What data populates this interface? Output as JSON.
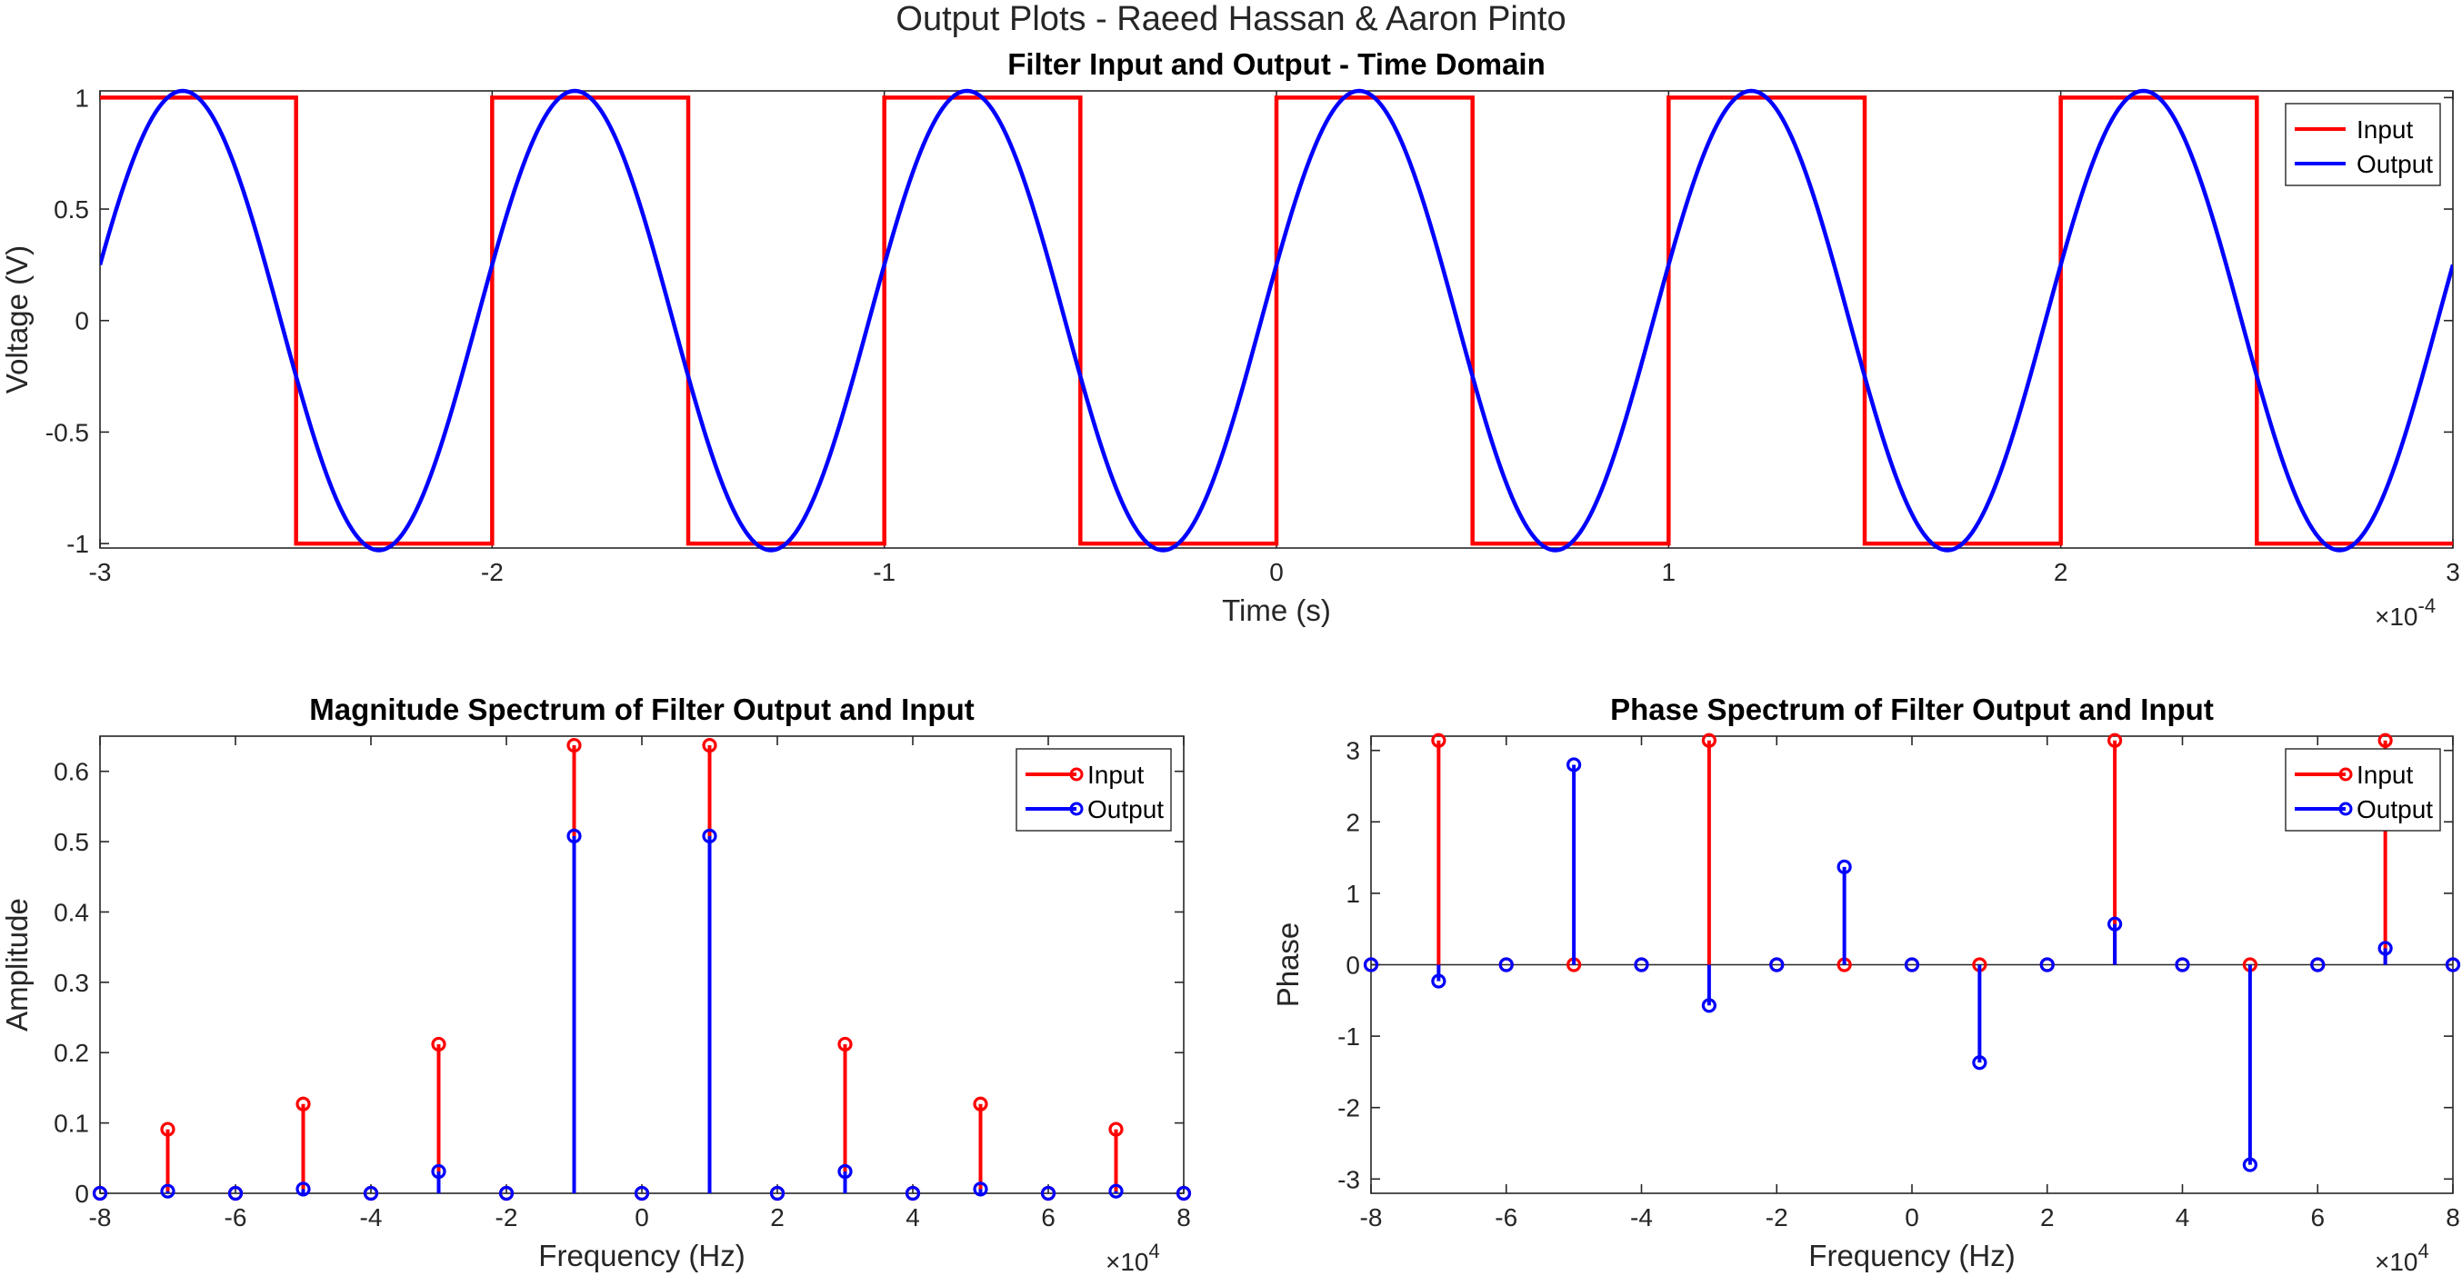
{
  "figure_title": "Output Plots - Raeed Hassan & Aaron Pinto",
  "colors": {
    "input": "#ff0000",
    "output": "#0000ff",
    "axis": "#262626"
  },
  "chart_data": [
    {
      "type": "line",
      "title": "Filter Input and Output - Time Domain",
      "xlabel": "Time (s)",
      "ylabel": "Voltage (V)",
      "xlim": [
        -3,
        3
      ],
      "ylim": [
        -1.02,
        1.03
      ],
      "x_exponent": "-4",
      "xticks": [
        -3,
        -2,
        -1,
        0,
        1,
        2,
        3
      ],
      "yticks": [
        -1,
        -0.5,
        0,
        0.5,
        1
      ],
      "legend": {
        "position": "top-right",
        "entries": [
          "Input",
          "Output"
        ]
      },
      "series": [
        {
          "name": "Input",
          "kind": "square",
          "description_values": {
            "period_x1e-4": 1,
            "high": 1,
            "low": -1,
            "high_intervals": [
              [
                -3,
                -2.5
              ],
              [
                -2,
                -1.5
              ],
              [
                -1,
                -0.5
              ],
              [
                0,
                0.5
              ],
              [
                1,
                1.5
              ],
              [
                2,
                2.5
              ]
            ],
            "low_intervals": [
              [
                -2.5,
                -2
              ],
              [
                -1.5,
                -1
              ],
              [
                -0.5,
                0
              ],
              [
                0.5,
                1
              ],
              [
                1.5,
                2
              ],
              [
                2.5,
                3
              ]
            ]
          }
        },
        {
          "name": "Output",
          "kind": "smooth",
          "x": [
            -3,
            -2.75,
            -2.5,
            -2.25,
            -2,
            -1.75,
            -1.5,
            -1.25,
            -1,
            -0.75,
            -0.5,
            -0.25,
            0,
            0.25,
            0.5,
            0.75,
            1,
            1.25,
            1.5,
            1.75,
            2,
            2.25,
            2.5,
            2.75,
            3
          ],
          "y": [
            0.25,
            1.03,
            -0.25,
            -1.03,
            0.25,
            1.03,
            -0.25,
            -1.03,
            0.25,
            1.03,
            -0.25,
            -1.03,
            0.25,
            1.03,
            -0.25,
            -1.03,
            0.25,
            1.03,
            -0.25,
            -1.03,
            0.25,
            1.03,
            -0.25,
            -1.03,
            0.25
          ]
        }
      ]
    },
    {
      "type": "stem",
      "title": "Magnitude Spectrum of Filter Output and Input",
      "xlabel": "Frequency (Hz)",
      "ylabel": "Amplitude",
      "xlim": [
        -8,
        8
      ],
      "ylim": [
        0,
        0.65
      ],
      "x_exponent": "4",
      "xticks": [
        -8,
        -6,
        -4,
        -2,
        0,
        2,
        4,
        6,
        8
      ],
      "yticks": [
        0,
        0.1,
        0.2,
        0.3,
        0.4,
        0.5,
        0.6
      ],
      "legend": {
        "position": "top-right",
        "entries": [
          "Input",
          "Output"
        ]
      },
      "x": [
        -8,
        -7,
        -6,
        -5,
        -4,
        -3,
        -2,
        -1,
        0,
        1,
        2,
        3,
        4,
        5,
        6,
        7,
        8
      ],
      "series": [
        {
          "name": "Input",
          "values": [
            0,
            0.091,
            0,
            0.127,
            0,
            0.212,
            0,
            0.637,
            0,
            0.637,
            0,
            0.212,
            0,
            0.127,
            0,
            0.091,
            0
          ]
        },
        {
          "name": "Output",
          "values": [
            0,
            0.003,
            0,
            0.006,
            0,
            0.031,
            0,
            0.508,
            0,
            0.508,
            0,
            0.031,
            0,
            0.006,
            0,
            0.003,
            0
          ]
        }
      ]
    },
    {
      "type": "stem",
      "title": "Phase Spectrum of Filter Output and Input",
      "xlabel": "Frequency (Hz)",
      "ylabel": "Phase",
      "xlim": [
        -8,
        8
      ],
      "ylim": [
        -3.2,
        3.2
      ],
      "x_exponent": "4",
      "xticks": [
        -8,
        -6,
        -4,
        -2,
        0,
        2,
        4,
        6,
        8
      ],
      "yticks": [
        -3,
        -2,
        -1,
        0,
        1,
        2,
        3
      ],
      "legend": {
        "position": "top-right",
        "entries": [
          "Input",
          "Output"
        ]
      },
      "x": [
        -8,
        -7,
        -6,
        -5,
        -4,
        -3,
        -2,
        -1,
        0,
        1,
        2,
        3,
        4,
        5,
        6,
        7,
        8
      ],
      "series": [
        {
          "name": "Input",
          "values": [
            0,
            3.14,
            0,
            0,
            0,
            3.14,
            0,
            0,
            0,
            0,
            0,
            3.14,
            0,
            0,
            0,
            3.14,
            0
          ]
        },
        {
          "name": "Output",
          "values": [
            0,
            -0.23,
            0,
            2.8,
            0,
            -0.57,
            0,
            1.37,
            0,
            -1.37,
            0,
            0.57,
            0,
            -2.8,
            0,
            0.23,
            0
          ]
        }
      ]
    }
  ]
}
